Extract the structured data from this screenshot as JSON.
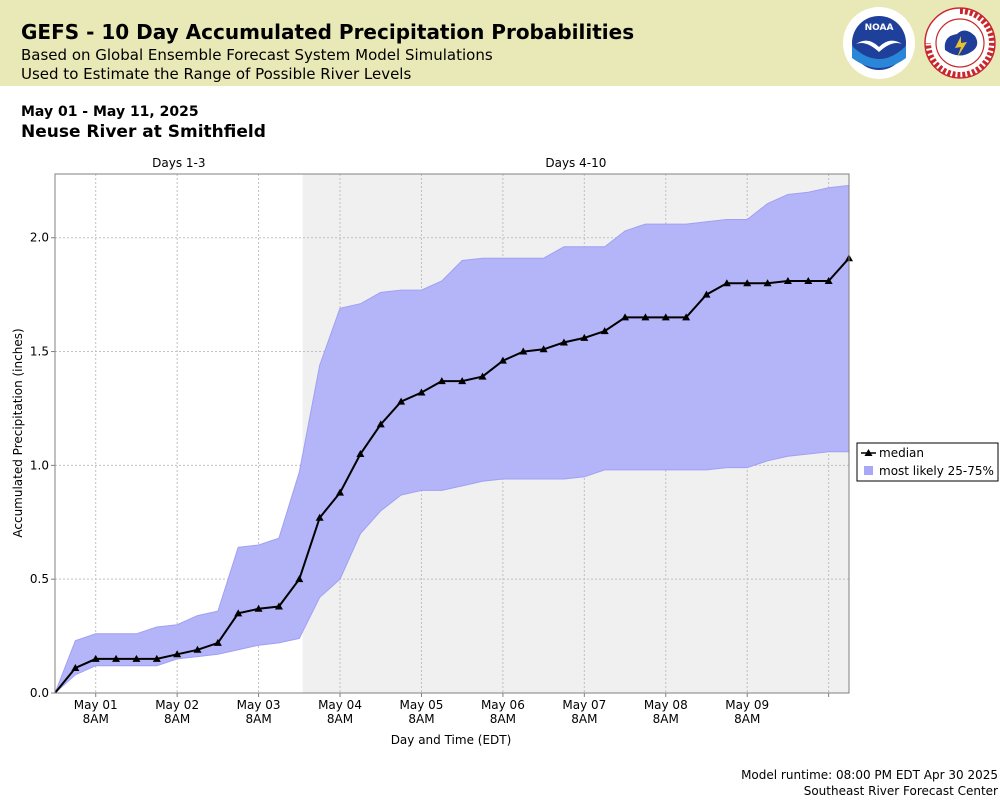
{
  "header": {
    "title": "GEFS - 10 Day Accumulated Precipitation Probabilities",
    "subtitle1": "Based on Global Ensemble Forecast System Model Simulations",
    "subtitle2": "Used to Estimate the Range of Possible River Levels",
    "noaa_logo_text": "NOAA",
    "nws_logo_text": "NATIONAL WEATHER SERVICE"
  },
  "date_range": "May 01 - May 11, 2025",
  "station": "Neuse River at Smithfield",
  "footer": {
    "runtime": "Model runtime: 08:00 PM EDT Apr 30 2025",
    "center": "Southeast River Forecast Center"
  },
  "colors": {
    "header_bg": "#e9e8b7",
    "band": "#b4b4f8",
    "band_edge": "#a0a0f4",
    "shade": "#f0f0f0",
    "median": "#000000"
  },
  "chart_data": {
    "type": "line",
    "xlabel": "Day and Time (EDT)",
    "ylabel": "Accumulated Precipitation (inches)",
    "ylim": [
      0,
      2.28
    ],
    "yticks": [
      "0.0",
      "0.5",
      "1.0",
      "1.5",
      "2.0"
    ],
    "ytick_values": [
      0,
      0.5,
      1.0,
      1.5,
      2.0
    ],
    "xticks": [
      {
        "day": "May 01",
        "time": "8AM",
        "hours": 12
      },
      {
        "day": "May 02",
        "time": "8AM",
        "hours": 36
      },
      {
        "day": "May 03",
        "time": "8AM",
        "hours": 60
      },
      {
        "day": "May 04",
        "time": "8AM",
        "hours": 84
      },
      {
        "day": "May 05",
        "time": "8AM",
        "hours": 108
      },
      {
        "day": "May 06",
        "time": "8AM",
        "hours": 132
      },
      {
        "day": "May 07",
        "time": "8AM",
        "hours": 156
      },
      {
        "day": "May 08",
        "time": "8AM",
        "hours": 180
      },
      {
        "day": "May 09",
        "time": "8AM",
        "hours": 204
      },
      {
        "day": "",
        "time": "",
        "hours": 228
      }
    ],
    "periods": [
      {
        "label": "Days 1-3",
        "start": 0,
        "end": 73
      },
      {
        "label": "Days 4-10",
        "start": 73,
        "end": 234
      }
    ],
    "grid": true,
    "legend_position": "right",
    "x": [
      0,
      6,
      12,
      18,
      24,
      30,
      36,
      42,
      48,
      54,
      60,
      66,
      72,
      78,
      84,
      90,
      96,
      102,
      108,
      114,
      120,
      126,
      132,
      138,
      144,
      150,
      156,
      162,
      168,
      174,
      180,
      186,
      192,
      198,
      204,
      210,
      216,
      222,
      228,
      234
    ],
    "series": [
      {
        "name": "median",
        "values": [
          0,
          0.11,
          0.15,
          0.15,
          0.15,
          0.15,
          0.17,
          0.19,
          0.22,
          0.35,
          0.37,
          0.38,
          0.5,
          0.77,
          0.88,
          1.05,
          1.18,
          1.28,
          1.32,
          1.37,
          1.37,
          1.39,
          1.46,
          1.5,
          1.51,
          1.54,
          1.56,
          1.59,
          1.65,
          1.65,
          1.65,
          1.65,
          1.75,
          1.8,
          1.8,
          1.8,
          1.81,
          1.81,
          1.81,
          1.91
        ]
      },
      {
        "name": "most likely 25-75%",
        "low": [
          0,
          0.08,
          0.12,
          0.12,
          0.12,
          0.12,
          0.15,
          0.16,
          0.17,
          0.19,
          0.21,
          0.22,
          0.24,
          0.42,
          0.5,
          0.7,
          0.8,
          0.87,
          0.89,
          0.89,
          0.91,
          0.93,
          0.94,
          0.94,
          0.94,
          0.94,
          0.95,
          0.98,
          0.98,
          0.98,
          0.98,
          0.98,
          0.98,
          0.99,
          0.99,
          1.02,
          1.04,
          1.05,
          1.06,
          1.06
        ],
        "high": [
          0,
          0.23,
          0.26,
          0.26,
          0.26,
          0.29,
          0.3,
          0.34,
          0.36,
          0.64,
          0.65,
          0.68,
          0.97,
          1.44,
          1.69,
          1.71,
          1.76,
          1.77,
          1.77,
          1.81,
          1.9,
          1.91,
          1.91,
          1.91,
          1.91,
          1.96,
          1.96,
          1.96,
          2.03,
          2.06,
          2.06,
          2.06,
          2.07,
          2.08,
          2.08,
          2.15,
          2.19,
          2.2,
          2.22,
          2.23
        ]
      }
    ]
  }
}
